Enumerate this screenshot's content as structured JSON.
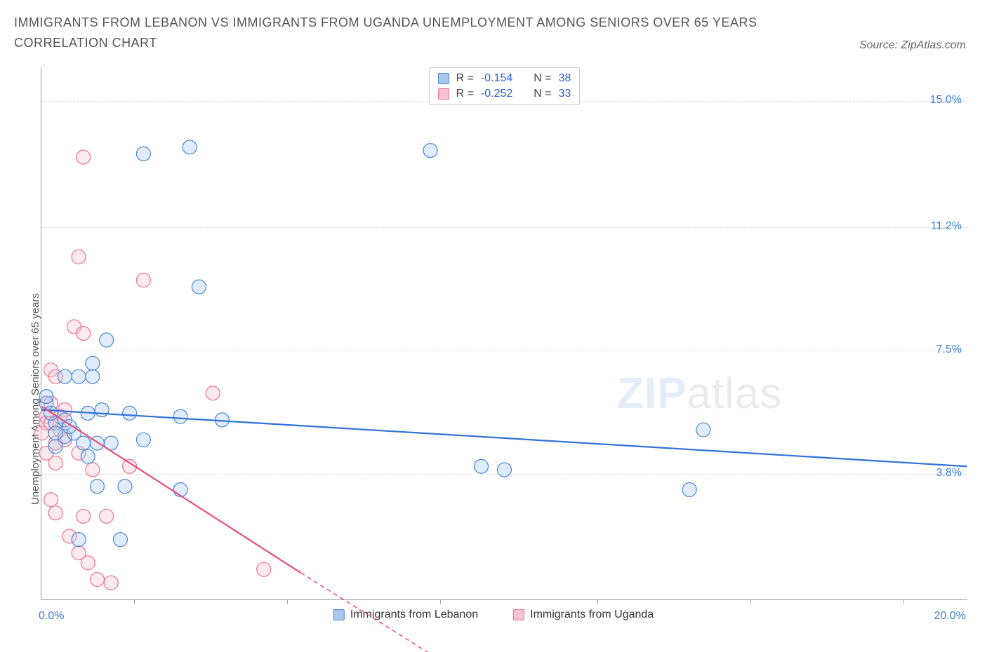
{
  "title": "IMMIGRANTS FROM LEBANON VS IMMIGRANTS FROM UGANDA UNEMPLOYMENT AMONG SENIORS OVER 65 YEARS CORRELATION CHART",
  "source_label": "Source: ZipAtlas.com",
  "ylabel": "Unemployment Among Seniors over 65 years",
  "watermark_zip": "ZIP",
  "watermark_atlas": "atlas",
  "chart": {
    "type": "scatter",
    "xlim": [
      0.0,
      20.0
    ],
    "ylim": [
      0.0,
      16.0
    ],
    "background_color": "#ffffff",
    "grid_color": "#e0e0e0",
    "axis_color": "#9e9e9e",
    "tick_label_color": "#3b7dd8",
    "ytick_labels": [
      {
        "v": 15.0,
        "label": "15.0%"
      },
      {
        "v": 11.2,
        "label": "11.2%"
      },
      {
        "v": 7.5,
        "label": "7.5%"
      },
      {
        "v": 3.8,
        "label": "3.8%"
      }
    ],
    "xtick_positions": [
      2.0,
      5.3,
      8.6,
      12.0,
      15.3,
      18.6
    ],
    "xaxis_min_label": "0.0%",
    "xaxis_max_label": "20.0%",
    "marker_radius": 10,
    "marker_opacity": 0.35,
    "series": [
      {
        "id": "lebanon",
        "label": "Immigrants from Lebanon",
        "fill": "#a9c8f0",
        "stroke": "#4a86d8",
        "line_color": "#2f72d6",
        "line_width": 2.2,
        "R": "-0.154",
        "N": "38",
        "trend": {
          "x1": 0.0,
          "y1": 5.7,
          "x2": 20.0,
          "y2": 4.0
        },
        "points": [
          [
            3.2,
            13.6
          ],
          [
            2.2,
            13.4
          ],
          [
            8.4,
            13.5
          ],
          [
            3.4,
            9.4
          ],
          [
            0.5,
            6.7
          ],
          [
            0.8,
            6.7
          ],
          [
            1.1,
            6.7
          ],
          [
            1.4,
            7.8
          ],
          [
            1.1,
            7.1
          ],
          [
            0.5,
            4.9
          ],
          [
            0.3,
            5.3
          ],
          [
            0.5,
            5.4
          ],
          [
            0.7,
            5.0
          ],
          [
            0.9,
            4.7
          ],
          [
            1.0,
            5.6
          ],
          [
            1.2,
            4.7
          ],
          [
            1.3,
            5.7
          ],
          [
            1.5,
            4.7
          ],
          [
            1.9,
            5.6
          ],
          [
            2.2,
            4.8
          ],
          [
            3.0,
            5.5
          ],
          [
            3.9,
            5.4
          ],
          [
            10.0,
            3.9
          ],
          [
            9.5,
            4.0
          ],
          [
            14.3,
            5.1
          ],
          [
            14.0,
            3.3
          ],
          [
            1.2,
            3.4
          ],
          [
            1.8,
            3.4
          ],
          [
            3.0,
            3.3
          ],
          [
            1.7,
            1.8
          ],
          [
            0.8,
            1.8
          ],
          [
            0.1,
            5.9
          ],
          [
            0.3,
            4.6
          ],
          [
            0.2,
            5.6
          ],
          [
            0.3,
            5.0
          ],
          [
            0.1,
            6.1
          ],
          [
            0.6,
            5.2
          ],
          [
            1.0,
            4.3
          ]
        ]
      },
      {
        "id": "uganda",
        "label": "Immigrants from Uganda",
        "fill": "#f6c3d2",
        "stroke": "#e9708f",
        "line_color": "#e64f78",
        "line_width": 2.2,
        "R": "-0.252",
        "N": "33",
        "trend": {
          "x1": 0.0,
          "y1": 5.8,
          "x2": 5.6,
          "y2": 0.8
        },
        "trend_dash": {
          "x1": 5.6,
          "y1": 0.8,
          "x2": 8.7,
          "y2": -1.9
        },
        "points": [
          [
            0.9,
            13.3
          ],
          [
            0.8,
            10.3
          ],
          [
            2.2,
            9.6
          ],
          [
            0.7,
            8.2
          ],
          [
            0.9,
            8.0
          ],
          [
            0.2,
            6.9
          ],
          [
            0.3,
            6.7
          ],
          [
            0.5,
            5.7
          ],
          [
            0.1,
            5.5
          ],
          [
            0.1,
            5.3
          ],
          [
            0.2,
            5.9
          ],
          [
            3.7,
            6.2
          ],
          [
            0.3,
            4.7
          ],
          [
            0.8,
            4.4
          ],
          [
            0.1,
            4.4
          ],
          [
            0.3,
            4.1
          ],
          [
            1.1,
            3.9
          ],
          [
            1.9,
            4.0
          ],
          [
            0.2,
            3.0
          ],
          [
            0.3,
            2.6
          ],
          [
            0.9,
            2.5
          ],
          [
            1.4,
            2.5
          ],
          [
            0.6,
            1.9
          ],
          [
            0.8,
            1.4
          ],
          [
            1.0,
            1.1
          ],
          [
            1.2,
            0.6
          ],
          [
            1.5,
            0.5
          ],
          [
            0.4,
            5.1
          ],
          [
            0.2,
            5.3
          ],
          [
            0.4,
            5.5
          ],
          [
            0.0,
            5.0
          ],
          [
            4.8,
            0.9
          ],
          [
            0.5,
            4.8
          ]
        ]
      }
    ],
    "stats_legend_labels": {
      "R": "R =",
      "N": "N ="
    }
  },
  "bottom_legend": {
    "items": [
      {
        "label": "Immigrants from Lebanon",
        "fill": "#a9c8f0",
        "stroke": "#4a86d8"
      },
      {
        "label": "Immigrants from Uganda",
        "fill": "#f6c3d2",
        "stroke": "#e9708f"
      }
    ]
  }
}
